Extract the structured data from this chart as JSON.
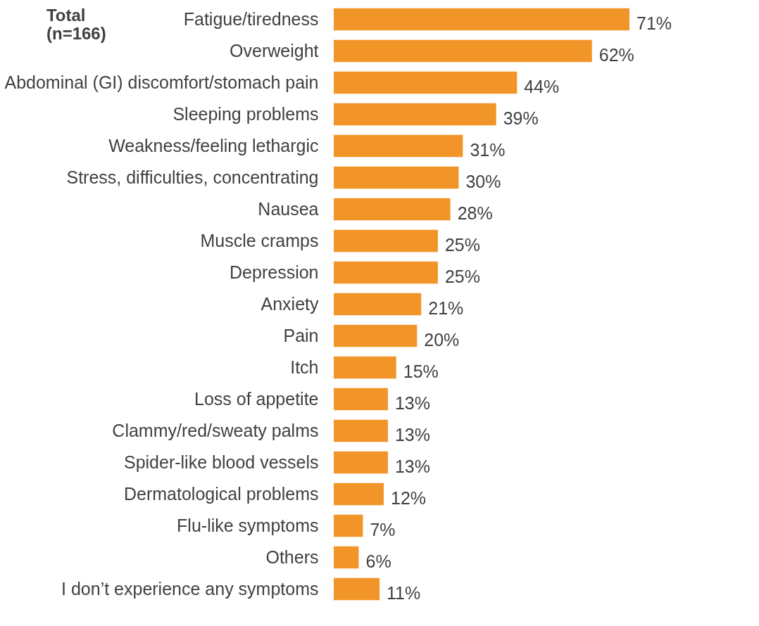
{
  "chart_data": {
    "type": "bar",
    "orientation": "horizontal",
    "title": "Total (n=166)",
    "categories": [
      "Fatigue/tiredness",
      "Overweight",
      "Abdominal (GI) discomfort/stomach pain",
      "Sleeping problems",
      "Weakness/feeling lethargic",
      "Stress, difficulties, concentrating",
      "Nausea",
      "Muscle cramps",
      "Depression",
      "Anxiety",
      "Pain",
      "Itch",
      "Loss of appetite",
      "Clammy/red/sweaty palms",
      "Spider-like blood vessels",
      "Dermatological problems",
      "Flu-like symptoms",
      "Others",
      "I don’t experience any symptoms"
    ],
    "values": [
      71,
      62,
      44,
      39,
      31,
      30,
      28,
      25,
      25,
      21,
      20,
      15,
      13,
      13,
      13,
      12,
      7,
      6,
      11
    ],
    "value_labels": [
      "71%",
      "62%",
      "44%",
      "39%",
      "31%",
      "30%",
      "28%",
      "25%",
      "25%",
      "21%",
      "20%",
      "15%",
      "13%",
      "13%",
      "13%",
      "12%",
      "7%",
      "6%",
      "11%"
    ],
    "color": "#f29528",
    "grid": false
  }
}
